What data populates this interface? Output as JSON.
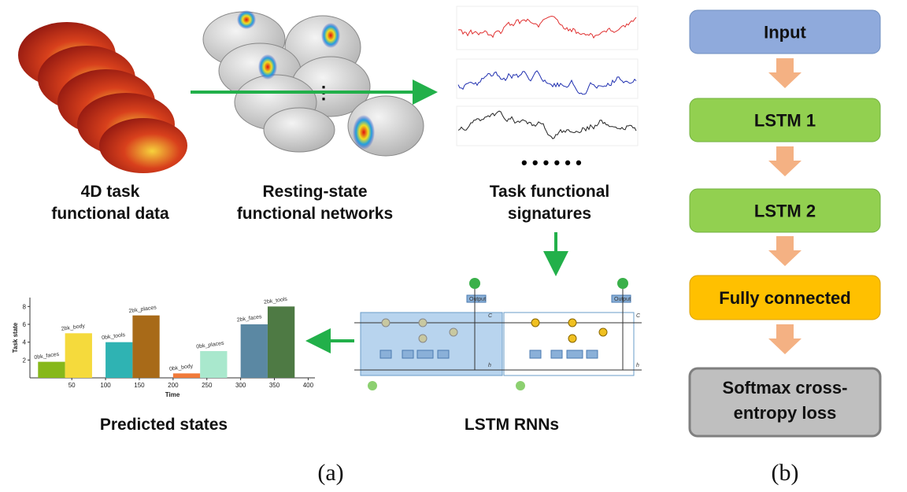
{
  "panel_a": {
    "labels": {
      "task_data": [
        "4D task",
        "functional data"
      ],
      "networks": [
        "Resting-state",
        "functional networks"
      ],
      "signatures": [
        "Task functional",
        "signatures"
      ],
      "predicted": "Predicted states",
      "lstm": "LSTM RNNs"
    },
    "cell_labels": [
      "C",
      "C",
      "h",
      "h",
      "Output",
      "Output"
    ],
    "chart": {
      "type": "bar",
      "y_label": "Task state",
      "x_label": "Time",
      "xlim": [
        -12,
        410
      ],
      "ylim": [
        0,
        9
      ],
      "xticks": [
        50,
        100,
        150,
        200,
        250,
        300,
        350,
        400
      ],
      "yticks": [
        2,
        4,
        6,
        8
      ],
      "bars": [
        {
          "label": "0bk_faces",
          "x0": 0,
          "x1": 40,
          "value": 1.8,
          "color": "#86b81a"
        },
        {
          "label": "2bk_body",
          "x0": 40,
          "x1": 80,
          "value": 5,
          "color": "#f5da3c"
        },
        {
          "label": "0bk_tools",
          "x0": 100,
          "x1": 140,
          "value": 4,
          "color": "#2fb3b3"
        },
        {
          "label": "2bk_places",
          "x0": 140,
          "x1": 180,
          "value": 7,
          "color": "#a86a18"
        },
        {
          "label": "0bk_body",
          "x0": 200,
          "x1": 240,
          "value": 0.5,
          "color": "#f07a3a"
        },
        {
          "label": "0bk_places",
          "x0": 240,
          "x1": 280,
          "value": 3,
          "color": "#a9e8cd"
        },
        {
          "label": "2bk_faces",
          "x0": 300,
          "x1": 340,
          "value": 6,
          "color": "#5b88a3"
        },
        {
          "label": "2bk_tools",
          "x0": 340,
          "x1": 380,
          "value": 8,
          "color": "#4e7a44"
        }
      ]
    },
    "caption": "(a)"
  },
  "panel_b": {
    "boxes": [
      "Input",
      "LSTM 1",
      "LSTM 2",
      "Fully connected",
      [
        "Softmax cross-",
        "entropy loss"
      ]
    ],
    "caption": "(b)"
  }
}
